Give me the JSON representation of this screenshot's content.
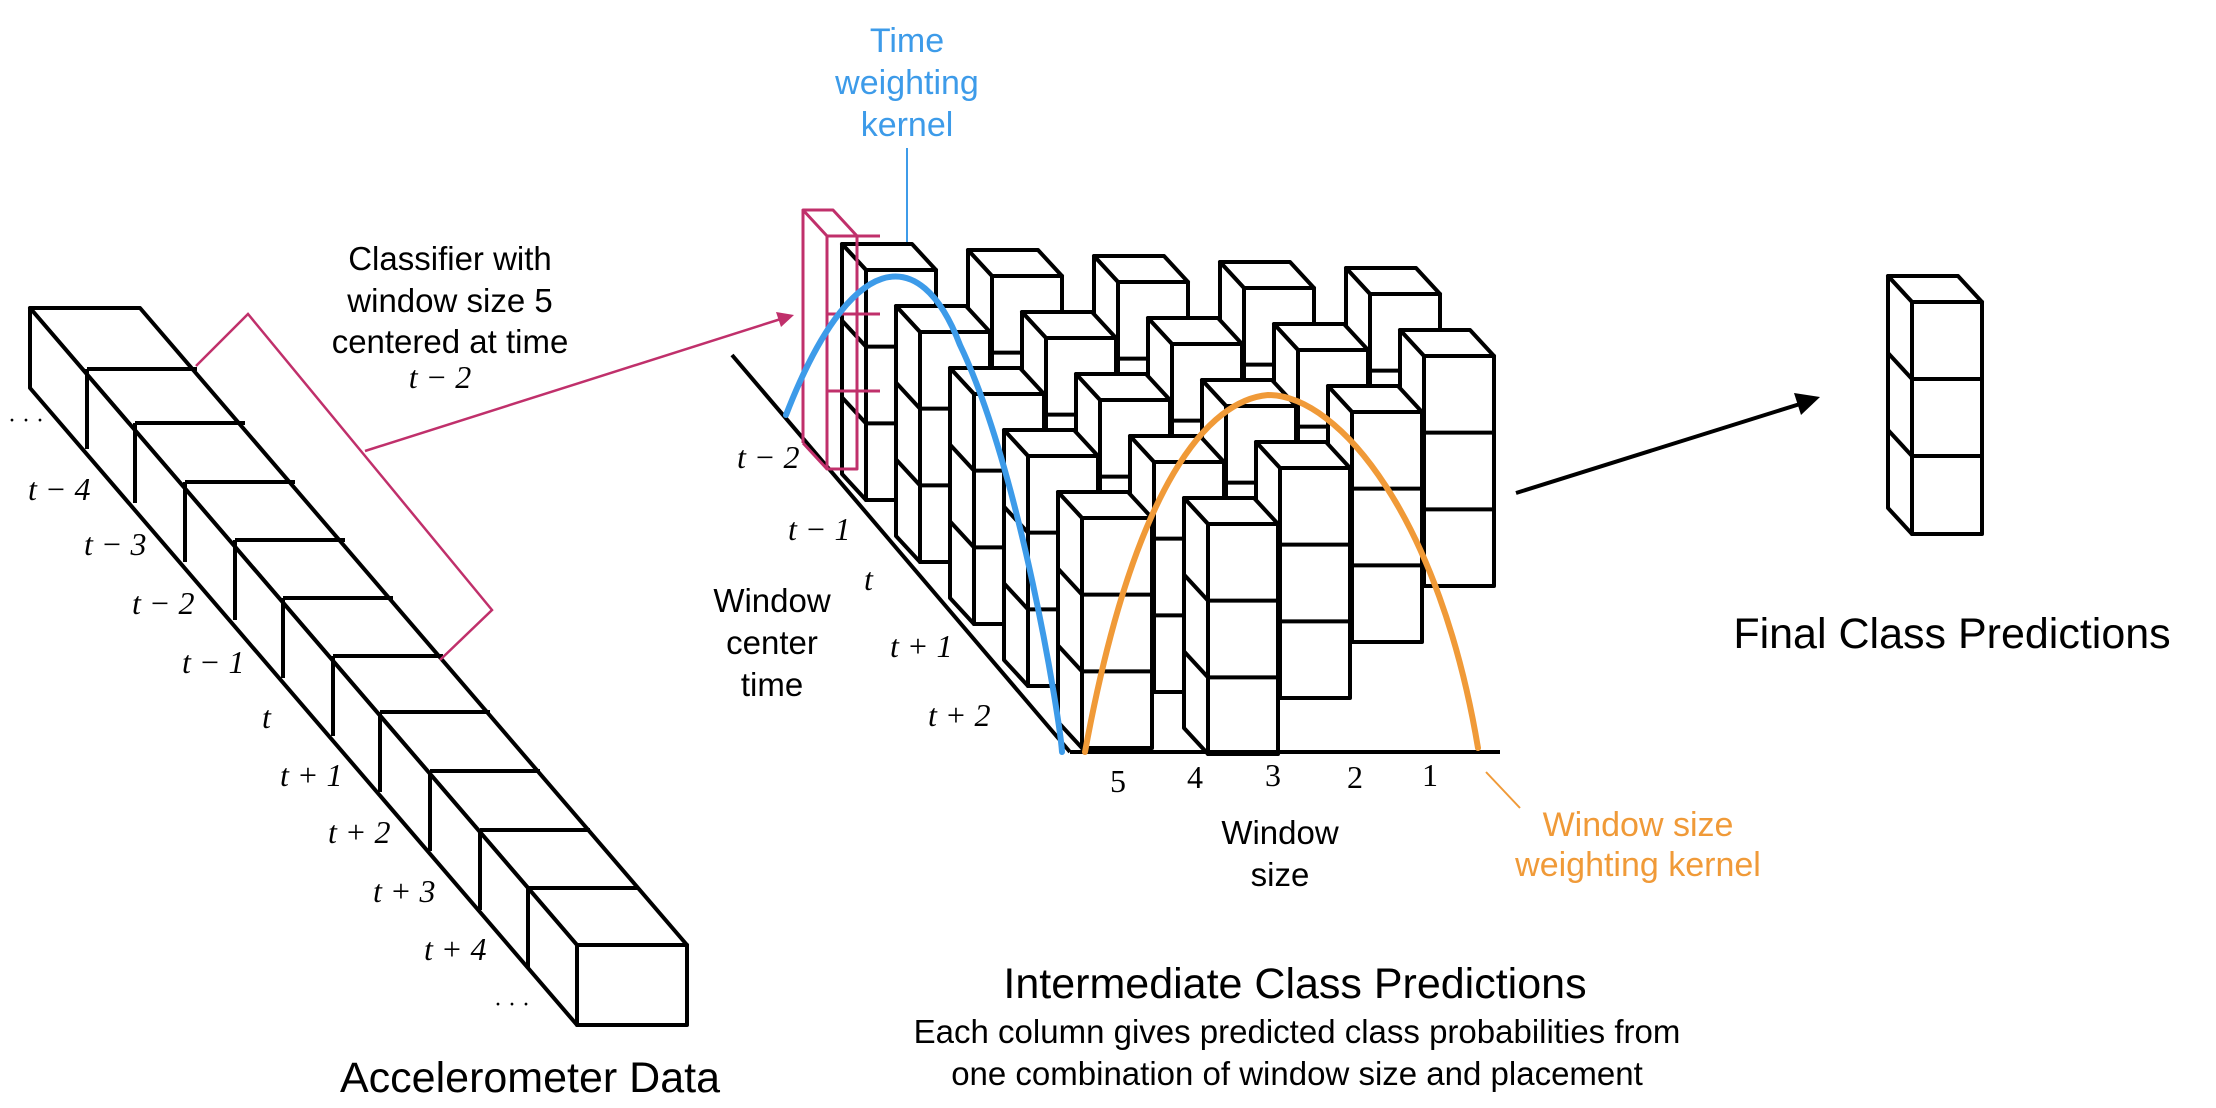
{
  "colors": {
    "ink": "#000000",
    "time_kernel": "#3d9be9",
    "window_kernel": "#f09a38",
    "classifier": "#c0306b"
  },
  "accelerometer": {
    "title": "Accelerometer Data",
    "ellipsis_start": "· · ·",
    "ellipsis_end": "· · ·",
    "time_labels": [
      "t − 4",
      "t − 3",
      "t − 2",
      "t − 1",
      "t",
      "t + 1",
      "t + 2",
      "t + 3",
      "t + 4"
    ]
  },
  "classifier_note": {
    "lines": [
      "Classifier with",
      "window size 5",
      "centered at time"
    ],
    "time": "t − 2"
  },
  "time_kernel_label": [
    "Time",
    "weighting",
    "kernel"
  ],
  "window_center_axis": {
    "title": [
      "Window",
      "center",
      "time"
    ],
    "ticks": [
      "t − 2",
      "t − 1",
      "t",
      "t + 1",
      "t + 2"
    ]
  },
  "window_size_axis": {
    "title": [
      "Window",
      "size"
    ],
    "ticks": [
      "5",
      "4",
      "3",
      "2",
      "1"
    ]
  },
  "window_kernel_label": [
    "Window size",
    "weighting kernel"
  ],
  "intermediate": {
    "title": "Intermediate Class Predictions",
    "caption": [
      "Each column gives predicted class probabilities from",
      "one combination of window size and placement"
    ]
  },
  "final": {
    "title": "Final Class Predictions"
  }
}
